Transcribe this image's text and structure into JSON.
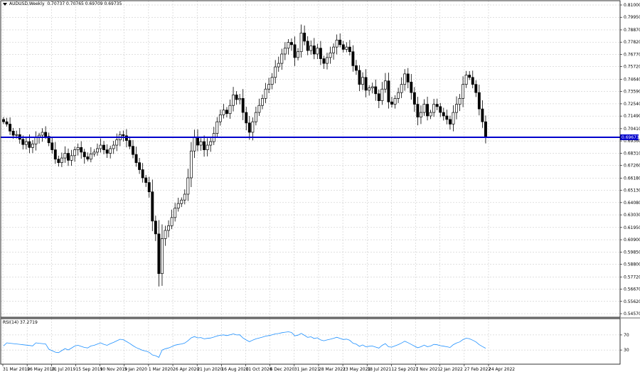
{
  "header": {
    "symbol": "AUDUSD,Weekly",
    "ohlc": "0.70737 0.70765 0.69709 0.69735"
  },
  "rsi_header": {
    "label": "RSI(14) 37.2719"
  },
  "colors": {
    "candle": "#000000",
    "hline": "#0000cc",
    "rsi": "#1e90ff",
    "grid": "#c0c0c0",
    "price_box": "#0000cc"
  },
  "chart_data": [
    {
      "type": "candlestick",
      "title": "AUDUSD,Weekly",
      "ylim": [
        0.5457,
        0.81
      ],
      "y_ticks": [
        "0.81000",
        "0.79950",
        "0.78870",
        "0.77820",
        "0.76770",
        "0.75720",
        "0.74640",
        "0.73590",
        "0.72540",
        "0.71490",
        "0.70410",
        "0.69360",
        "0.68310",
        "0.67260",
        "0.66180",
        "0.65130",
        "0.64080",
        "0.63030",
        "0.61950",
        "0.60900",
        "0.59850",
        "0.58800",
        "0.57720",
        "0.56670",
        "0.55620",
        "0.54570"
      ],
      "x_ticks": [
        "31 Mar 2019",
        "26 May 2019",
        "21 Jul 2019",
        "15 Sep 2019",
        "10 Nov 2019",
        "5 Jan 2020",
        "1 Mar 2020",
        "26 Apr 2020",
        "21 Jun 2020",
        "16 Aug 2020",
        "11 Oct 2020",
        "6 Dec 2020",
        "31 Jan 2021",
        "28 Mar 2021",
        "23 May 2021",
        "18 Jul 2021",
        "12 Sep 2021",
        "7 Nov 2021",
        "2 Jan 2022",
        "27 Feb 2022",
        "24 Apr 2022"
      ],
      "horizontal_line": {
        "value": 0.69673,
        "label": "0.69673"
      },
      "closes": [
        0.71,
        0.708,
        0.702,
        0.6985,
        0.699,
        0.695,
        0.6905,
        0.693,
        0.688,
        0.691,
        0.6965,
        0.6985,
        0.701,
        0.6975,
        0.692,
        0.686,
        0.678,
        0.675,
        0.679,
        0.683,
        0.677,
        0.681,
        0.686,
        0.688,
        0.684,
        0.68,
        0.678,
        0.6825,
        0.684,
        0.687,
        0.69,
        0.686,
        0.683,
        0.687,
        0.69,
        0.6945,
        0.699,
        0.698,
        0.694,
        0.689,
        0.682,
        0.675,
        0.669,
        0.662,
        0.658,
        0.65,
        0.625,
        0.614,
        0.58,
        0.61,
        0.617,
        0.621,
        0.628,
        0.636,
        0.64,
        0.643,
        0.648,
        0.662,
        0.685,
        0.697,
        0.69,
        0.693,
        0.686,
        0.69,
        0.693,
        0.7,
        0.71,
        0.716,
        0.72,
        0.717,
        0.724,
        0.733,
        0.729,
        0.73,
        0.718,
        0.709,
        0.701,
        0.71,
        0.718,
        0.724,
        0.73,
        0.738,
        0.742,
        0.748,
        0.757,
        0.76,
        0.768,
        0.773,
        0.778,
        0.776,
        0.765,
        0.77,
        0.786,
        0.779,
        0.771,
        0.775,
        0.768,
        0.773,
        0.764,
        0.76,
        0.765,
        0.769,
        0.774,
        0.78,
        0.776,
        0.772,
        0.774,
        0.77,
        0.758,
        0.754,
        0.742,
        0.748,
        0.737,
        0.739,
        0.74,
        0.734,
        0.728,
        0.738,
        0.745,
        0.727,
        0.725,
        0.73,
        0.735,
        0.742,
        0.751,
        0.744,
        0.735,
        0.725,
        0.714,
        0.718,
        0.725,
        0.715,
        0.718,
        0.725,
        0.723,
        0.718,
        0.715,
        0.712,
        0.708,
        0.718,
        0.725,
        0.73,
        0.742,
        0.75,
        0.748,
        0.742,
        0.735,
        0.721,
        0.71,
        0.6973
      ],
      "rsi": {
        "label": "RSI(14) 37.2719",
        "period": 14,
        "last_value": 37.2719,
        "ylim": [
          0,
          100
        ],
        "y_ticks": [
          30,
          70
        ]
      }
    }
  ]
}
